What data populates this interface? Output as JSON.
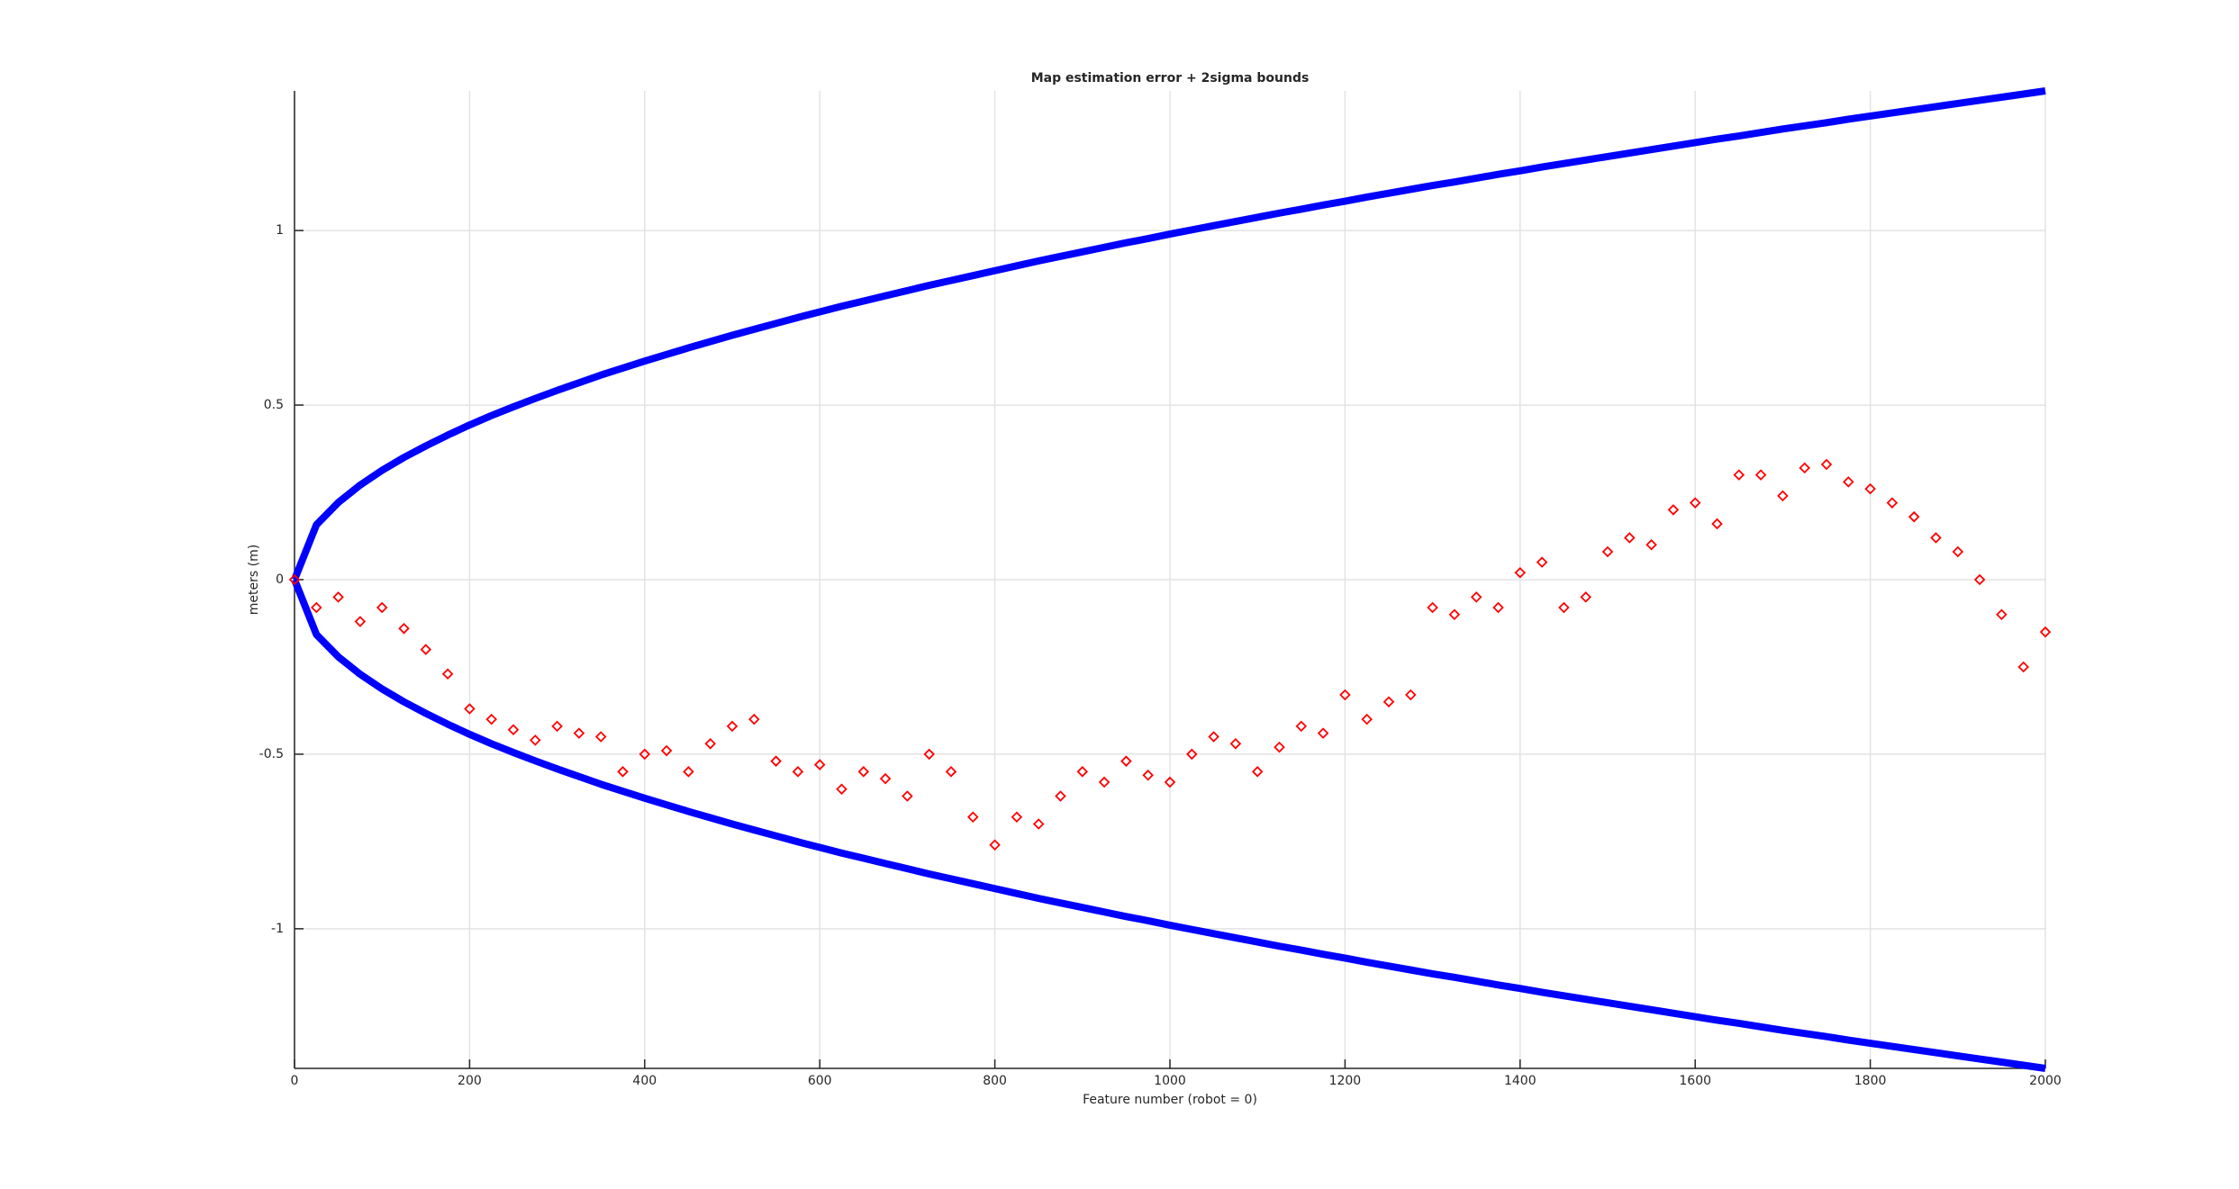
{
  "chart_data": {
    "type": "scatter",
    "title": "Map estimation error + 2sigma bounds",
    "xlabel": "Feature number (robot = 0)",
    "ylabel": "meters (m)",
    "xlim": [
      0,
      2000
    ],
    "ylim": [
      -1.4,
      1.4
    ],
    "xticks": [
      0,
      200,
      400,
      600,
      800,
      1000,
      1200,
      1400,
      1600,
      1800,
      2000
    ],
    "yticks": [
      -1,
      -0.5,
      0,
      0.5,
      1
    ],
    "grid": true,
    "x": [
      0,
      25,
      50,
      75,
      100,
      125,
      150,
      175,
      200,
      225,
      250,
      275,
      300,
      325,
      350,
      375,
      400,
      425,
      450,
      475,
      500,
      525,
      550,
      575,
      600,
      625,
      650,
      675,
      700,
      725,
      750,
      775,
      800,
      825,
      850,
      875,
      900,
      925,
      950,
      975,
      1000,
      1025,
      1050,
      1075,
      1100,
      1125,
      1150,
      1175,
      1200,
      1225,
      1250,
      1275,
      1300,
      1325,
      1350,
      1375,
      1400,
      1425,
      1450,
      1475,
      1500,
      1525,
      1550,
      1575,
      1600,
      1625,
      1650,
      1675,
      1700,
      1725,
      1750,
      1775,
      1800,
      1825,
      1850,
      1875,
      1900,
      1925,
      1950,
      1975,
      2000
    ],
    "series": [
      {
        "color": "#0000ff",
        "marker": "line",
        "values": [
          0,
          0.157,
          0.221,
          0.271,
          0.313,
          0.35,
          0.383,
          0.414,
          0.443,
          0.47,
          0.495,
          0.519,
          0.542,
          0.564,
          0.586,
          0.606,
          0.626,
          0.645,
          0.664,
          0.682,
          0.7,
          0.717,
          0.734,
          0.751,
          0.767,
          0.783,
          0.798,
          0.813,
          0.828,
          0.843,
          0.857,
          0.871,
          0.885,
          0.899,
          0.913,
          0.926,
          0.939,
          0.952,
          0.965,
          0.977,
          0.99,
          1.002,
          1.014,
          1.026,
          1.038,
          1.05,
          1.061,
          1.073,
          1.084,
          1.096,
          1.107,
          1.118,
          1.129,
          1.139,
          1.15,
          1.161,
          1.171,
          1.182,
          1.192,
          1.202,
          1.212,
          1.222,
          1.232,
          1.242,
          1.252,
          1.262,
          1.271,
          1.281,
          1.291,
          1.3,
          1.309,
          1.319,
          1.328,
          1.337,
          1.346,
          1.355,
          1.364,
          1.373,
          1.382,
          1.391,
          1.4
        ]
      },
      {
        "color": "#0000ff",
        "marker": "line",
        "values": [
          0,
          -0.157,
          -0.221,
          -0.271,
          -0.313,
          -0.35,
          -0.383,
          -0.414,
          -0.443,
          -0.47,
          -0.495,
          -0.519,
          -0.542,
          -0.564,
          -0.586,
          -0.606,
          -0.626,
          -0.645,
          -0.664,
          -0.682,
          -0.7,
          -0.717,
          -0.734,
          -0.751,
          -0.767,
          -0.783,
          -0.798,
          -0.813,
          -0.828,
          -0.843,
          -0.857,
          -0.871,
          -0.885,
          -0.899,
          -0.913,
          -0.926,
          -0.939,
          -0.952,
          -0.965,
          -0.977,
          -0.99,
          -1.002,
          -1.014,
          -1.026,
          -1.038,
          -1.05,
          -1.061,
          -1.073,
          -1.084,
          -1.096,
          -1.107,
          -1.118,
          -1.129,
          -1.139,
          -1.15,
          -1.161,
          -1.171,
          -1.182,
          -1.192,
          -1.202,
          -1.212,
          -1.222,
          -1.232,
          -1.242,
          -1.252,
          -1.262,
          -1.271,
          -1.281,
          -1.291,
          -1.3,
          -1.309,
          -1.319,
          -1.328,
          -1.337,
          -1.346,
          -1.355,
          -1.364,
          -1.373,
          -1.382,
          -1.391,
          -1.4
        ]
      },
      {
        "color": "#ff0000",
        "marker": "diamond",
        "values": [
          0,
          -0.08,
          -0.05,
          -0.12,
          -0.08,
          -0.14,
          -0.2,
          -0.27,
          -0.37,
          -0.4,
          -0.43,
          -0.46,
          -0.42,
          -0.44,
          -0.45,
          -0.55,
          -0.5,
          -0.49,
          -0.55,
          -0.47,
          -0.42,
          -0.4,
          -0.52,
          -0.55,
          -0.53,
          -0.6,
          -0.55,
          -0.57,
          -0.62,
          -0.5,
          -0.55,
          -0.68,
          -0.76,
          -0.68,
          -0.7,
          -0.62,
          -0.55,
          -0.58,
          -0.52,
          -0.56,
          -0.58,
          -0.5,
          -0.45,
          -0.47,
          -0.55,
          -0.48,
          -0.42,
          -0.44,
          -0.33,
          -0.4,
          -0.35,
          -0.33,
          -0.08,
          -0.1,
          -0.05,
          -0.08,
          0.02,
          0.05,
          -0.08,
          -0.05,
          0.08,
          0.12,
          0.1,
          0.2,
          0.22,
          0.16,
          0.3,
          0.3,
          0.24,
          0.32,
          0.33,
          0.28,
          0.26,
          0.22,
          0.18,
          0.12,
          0.08,
          0,
          -0.1,
          -0.25,
          -0.15
        ]
      }
    ]
  }
}
